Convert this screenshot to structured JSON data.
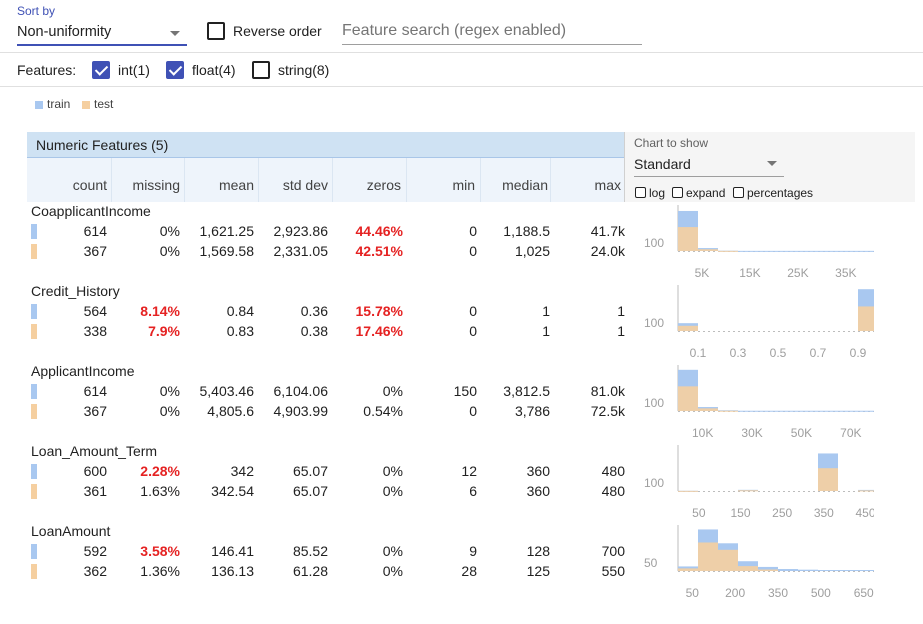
{
  "toolbar": {
    "sort_by_label": "Sort by",
    "sort_value": "Non-uniformity",
    "reverse_label": "Reverse order",
    "reverse_checked": false,
    "search_placeholder": "Feature search (regex enabled)"
  },
  "features_filter": {
    "label": "Features:",
    "options": [
      {
        "label": "int(1)",
        "checked": true
      },
      {
        "label": "float(4)",
        "checked": true
      },
      {
        "label": "string(8)",
        "checked": false
      }
    ]
  },
  "legend": {
    "items": [
      {
        "label": "train",
        "color": "#a9c8f0"
      },
      {
        "label": "test",
        "color": "#f5cfa0"
      }
    ]
  },
  "table": {
    "title": "Numeric Features (5)",
    "columns": [
      "count",
      "missing",
      "mean",
      "std dev",
      "zeros",
      "min",
      "median",
      "max"
    ],
    "chart_to_show_label": "Chart to show",
    "chart_to_show_value": "Standard",
    "chart_options": [
      "log",
      "expand",
      "percentages"
    ],
    "features": [
      {
        "name": "CoapplicantIncome",
        "rows": [
          {
            "split": "train",
            "count": "614",
            "missing": "0%",
            "mean": "1,621.25",
            "std": "2,923.86",
            "zeros": "44.46%",
            "min": "0",
            "median": "1,188.5",
            "max": "41.7k",
            "missing_red": false,
            "zeros_red": true
          },
          {
            "split": "test",
            "count": "367",
            "missing": "0%",
            "mean": "1,569.58",
            "std": "2,331.05",
            "zeros": "42.51%",
            "min": "0",
            "median": "1,025",
            "max": "24.0k",
            "missing_red": false,
            "zeros_red": true
          }
        ]
      },
      {
        "name": "Credit_History",
        "rows": [
          {
            "split": "train",
            "count": "564",
            "missing": "8.14%",
            "mean": "0.84",
            "std": "0.36",
            "zeros": "15.78%",
            "min": "0",
            "median": "1",
            "max": "1",
            "missing_red": true,
            "zeros_red": true
          },
          {
            "split": "test",
            "count": "338",
            "missing": "7.9%",
            "mean": "0.83",
            "std": "0.38",
            "zeros": "17.46%",
            "min": "0",
            "median": "1",
            "max": "1",
            "missing_red": true,
            "zeros_red": true
          }
        ]
      },
      {
        "name": "ApplicantIncome",
        "rows": [
          {
            "split": "train",
            "count": "614",
            "missing": "0%",
            "mean": "5,403.46",
            "std": "6,104.06",
            "zeros": "0%",
            "min": "150",
            "median": "3,812.5",
            "max": "81.0k",
            "missing_red": false,
            "zeros_red": false
          },
          {
            "split": "test",
            "count": "367",
            "missing": "0%",
            "mean": "4,805.6",
            "std": "4,903.99",
            "zeros": "0.54%",
            "min": "0",
            "median": "3,786",
            "max": "72.5k",
            "missing_red": false,
            "zeros_red": false
          }
        ]
      },
      {
        "name": "Loan_Amount_Term",
        "rows": [
          {
            "split": "train",
            "count": "600",
            "missing": "2.28%",
            "mean": "342",
            "std": "65.07",
            "zeros": "0%",
            "min": "12",
            "median": "360",
            "max": "480",
            "missing_red": true,
            "zeros_red": false
          },
          {
            "split": "test",
            "count": "361",
            "missing": "1.63%",
            "mean": "342.54",
            "std": "65.07",
            "zeros": "0%",
            "min": "6",
            "median": "360",
            "max": "480",
            "missing_red": false,
            "zeros_red": false
          }
        ]
      },
      {
        "name": "LoanAmount",
        "rows": [
          {
            "split": "train",
            "count": "592",
            "missing": "3.58%",
            "mean": "146.41",
            "std": "85.52",
            "zeros": "0%",
            "min": "9",
            "median": "128",
            "max": "700",
            "missing_red": true,
            "zeros_red": false
          },
          {
            "split": "test",
            "count": "362",
            "missing": "1.36%",
            "mean": "136.13",
            "std": "61.28",
            "zeros": "0%",
            "min": "28",
            "median": "125",
            "max": "550",
            "missing_red": false,
            "zeros_red": false
          }
        ]
      }
    ]
  },
  "chart_data": [
    {
      "type": "bar",
      "title": "CoapplicantIncome",
      "ytick": "100",
      "xticks": [
        "5K",
        "15K",
        "25K",
        "35K"
      ],
      "xtick_values": [
        5000,
        15000,
        25000,
        35000
      ],
      "xlim": [
        0,
        41700
      ],
      "ylim": [
        0,
        300
      ],
      "series": [
        {
          "name": "train",
          "bins": [
            [
              0,
              4170,
              273
            ],
            [
              4170,
              8340,
              20
            ],
            [
              8340,
              12510,
              2
            ],
            [
              12510,
              41700,
              1
            ]
          ]
        },
        {
          "name": "test",
          "bins": [
            [
              0,
              4170,
              163
            ],
            [
              4170,
              8340,
              12
            ],
            [
              8340,
              12510,
              1
            ]
          ]
        }
      ]
    },
    {
      "type": "bar",
      "title": "Credit_History",
      "ytick": "100",
      "xticks": [
        "0.1",
        "0.3",
        "0.5",
        "0.7",
        "0.9"
      ],
      "xtick_values": [
        0.1,
        0.3,
        0.5,
        0.7,
        0.9
      ],
      "xlim": [
        0,
        1
      ],
      "ylim": [
        0,
        500
      ],
      "series": [
        {
          "name": "train",
          "bins": [
            [
              0,
              0.1,
              89
            ],
            [
              0.9,
              1.0,
              475
            ]
          ]
        },
        {
          "name": "test",
          "bins": [
            [
              0,
              0.1,
              59
            ],
            [
              0.9,
              1.0,
              279
            ]
          ]
        }
      ]
    },
    {
      "type": "bar",
      "title": "ApplicantIncome",
      "ytick": "100",
      "xticks": [
        "10K",
        "30K",
        "50K",
        "70K"
      ],
      "xtick_values": [
        10000,
        30000,
        50000,
        70000
      ],
      "xlim": [
        0,
        81000
      ],
      "ylim": [
        0,
        500
      ],
      "series": [
        {
          "name": "train",
          "bins": [
            [
              0,
              8100,
              468
            ],
            [
              8100,
              16200,
              45
            ],
            [
              16200,
              24300,
              8
            ],
            [
              24300,
              81000,
              3
            ]
          ]
        },
        {
          "name": "test",
          "bins": [
            [
              0,
              8100,
              280
            ],
            [
              8100,
              16200,
              30
            ],
            [
              16200,
              24300,
              3
            ]
          ]
        }
      ]
    },
    {
      "type": "bar",
      "title": "Loan_Amount_Term",
      "ytick": "100",
      "xticks": [
        "50",
        "150",
        "250",
        "350",
        "450"
      ],
      "xtick_values": [
        50,
        150,
        250,
        350,
        450
      ],
      "xlim": [
        0,
        480
      ],
      "ylim": [
        0,
        600
      ],
      "series": [
        {
          "name": "train",
          "bins": [
            [
              0,
              48,
              3
            ],
            [
              144,
              192,
              16
            ],
            [
              336,
              384,
              512
            ],
            [
              432,
              480,
              15
            ]
          ]
        },
        {
          "name": "test",
          "bins": [
            [
              0,
              48,
              2
            ],
            [
              144,
              192,
              10
            ],
            [
              336,
              384,
              311
            ],
            [
              432,
              480,
              8
            ]
          ]
        }
      ]
    },
    {
      "type": "bar",
      "title": "LoanAmount",
      "ytick": "50",
      "xticks": [
        "50",
        "200",
        "350",
        "500",
        "650"
      ],
      "xtick_values": [
        50,
        200,
        350,
        500,
        650
      ],
      "xlim": [
        0,
        700
      ],
      "ylim": [
        0,
        270
      ],
      "series": [
        {
          "name": "train",
          "bins": [
            [
              0,
              70,
              28
            ],
            [
              70,
              140,
              255
            ],
            [
              140,
              210,
              170
            ],
            [
              210,
              280,
              60
            ],
            [
              280,
              350,
              25
            ],
            [
              350,
              420,
              12
            ],
            [
              420,
              490,
              8
            ],
            [
              490,
              700,
              6
            ]
          ]
        },
        {
          "name": "test",
          "bins": [
            [
              0,
              70,
              16
            ],
            [
              70,
              140,
              175
            ],
            [
              140,
              210,
              130
            ],
            [
              210,
              280,
              30
            ],
            [
              280,
              350,
              9
            ]
          ]
        }
      ]
    }
  ]
}
